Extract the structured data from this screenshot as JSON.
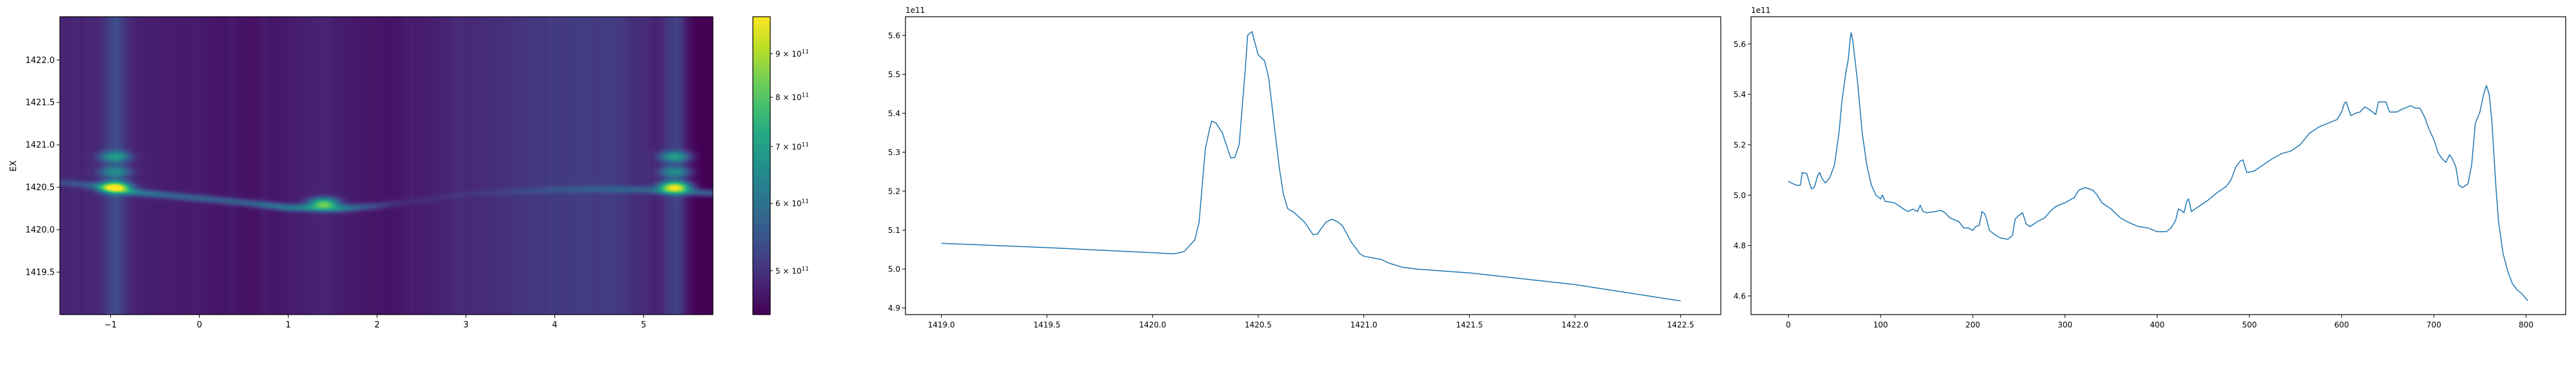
{
  "chart_data": [
    {
      "type": "heatmap",
      "ylabel": "EX",
      "xlabel": "",
      "xlim": [
        -1.57,
        5.78
      ],
      "ylim": [
        1419.0,
        1422.51
      ],
      "xticks": [
        "−1",
        "0",
        "1",
        "2",
        "3",
        "4",
        "5"
      ],
      "xtick_values": [
        -1,
        0,
        1,
        2,
        3,
        4,
        5
      ],
      "yticks": [
        "1419.5",
        "1420.0",
        "1420.5",
        "1421.0",
        "1421.5",
        "1422.0"
      ],
      "ytick_values": [
        1419.5,
        1420.0,
        1420.5,
        1421.0,
        1421.5,
        1422.0
      ],
      "colormap": "viridis",
      "color_scale": "log",
      "colorbar": {
        "vmin": 444000000000.0,
        "vmax": 995000000000.0,
        "ticks": [
          {
            "value": 500000000000.0,
            "base": "5 × 10",
            "exp": "11"
          },
          {
            "value": 600000000000.0,
            "base": "6 × 10",
            "exp": "11"
          },
          {
            "value": 700000000000.0,
            "base": "7 × 10",
            "exp": "11"
          },
          {
            "value": 800000000000.0,
            "base": "8 × 10",
            "exp": "11"
          },
          {
            "value": 900000000000.0,
            "base": "9 × 10",
            "exp": "11"
          }
        ]
      },
      "ridge": [
        [
          -1.57,
          1420.56,
          0.5
        ],
        [
          -1.2,
          1420.52,
          0.8
        ],
        [
          -0.8,
          1420.45,
          1.5
        ],
        [
          -0.3,
          1420.4,
          1.0
        ],
        [
          0.5,
          1420.32,
          1.0
        ],
        [
          1.0,
          1420.26,
          1.5
        ],
        [
          1.6,
          1420.25,
          1.5
        ],
        [
          2.0,
          1420.28,
          0.6
        ],
        [
          2.3,
          1420.32,
          0.2
        ],
        [
          3.0,
          1420.42,
          0.15
        ],
        [
          4.0,
          1420.47,
          0.4
        ],
        [
          4.5,
          1420.48,
          0.6
        ],
        [
          5.0,
          1420.47,
          0.8
        ],
        [
          5.78,
          1420.43,
          1.2
        ]
      ],
      "hotspots": [
        {
          "x": -0.95,
          "y": 1420.5,
          "value": 980000000000.0
        },
        {
          "x": -0.95,
          "y": 1420.86,
          "value": 700000000000.0
        },
        {
          "x": -0.95,
          "y": 1420.68,
          "value": 660000000000.0
        },
        {
          "x": 1.4,
          "y": 1420.31,
          "value": 800000000000.0
        },
        {
          "x": 5.35,
          "y": 1420.5,
          "value": 960000000000.0
        },
        {
          "x": 5.35,
          "y": 1420.86,
          "value": 700000000000.0
        },
        {
          "x": 5.35,
          "y": 1420.68,
          "value": 660000000000.0
        }
      ]
    },
    {
      "type": "line",
      "offset_label": "1e11",
      "color": "#1f77b4",
      "xlim": [
        1418.83,
        1422.69
      ],
      "ylim": [
        4.883,
        5.648
      ],
      "xticks": [
        "1419.0",
        "1419.5",
        "1420.0",
        "1420.5",
        "1421.0",
        "1421.5",
        "1422.0",
        "1422.5"
      ],
      "xtick_values": [
        1419.0,
        1419.5,
        1420.0,
        1420.5,
        1421.0,
        1421.5,
        1422.0,
        1422.5
      ],
      "yticks": [
        "4.9",
        "5.0",
        "5.1",
        "5.2",
        "5.3",
        "5.4",
        "5.5",
        "5.6"
      ],
      "ytick_values": [
        4.9,
        5.0,
        5.1,
        5.2,
        5.3,
        5.4,
        5.5,
        5.6
      ],
      "x": [
        1419.0,
        1419.5,
        1420.0,
        1420.1,
        1420.15,
        1420.2,
        1420.22,
        1420.25,
        1420.27,
        1420.28,
        1420.3,
        1420.33,
        1420.37,
        1420.39,
        1420.41,
        1420.44,
        1420.45,
        1420.47,
        1420.5,
        1420.53,
        1420.55,
        1420.58,
        1420.6,
        1420.62,
        1420.64,
        1420.67,
        1420.72,
        1420.76,
        1420.78,
        1420.82,
        1420.85,
        1420.88,
        1420.9,
        1420.94,
        1420.98,
        1421.0,
        1421.08,
        1421.12,
        1421.18,
        1421.25,
        1421.5,
        1422.0,
        1422.5
      ],
      "y": [
        5.066,
        5.055,
        5.042,
        5.039,
        5.045,
        5.075,
        5.12,
        5.31,
        5.36,
        5.38,
        5.375,
        5.35,
        5.285,
        5.287,
        5.32,
        5.52,
        5.6,
        5.61,
        5.55,
        5.535,
        5.49,
        5.35,
        5.26,
        5.19,
        5.155,
        5.145,
        5.12,
        5.088,
        5.09,
        5.12,
        5.128,
        5.12,
        5.11,
        5.07,
        5.04,
        5.033,
        5.025,
        5.015,
        5.005,
        5.0,
        4.99,
        4.96,
        4.918
      ]
    },
    {
      "type": "line",
      "offset_label": "1e11",
      "color": "#1f77b4",
      "xlim": [
        -40.5,
        843
      ],
      "ylim": [
        4.526,
        5.708
      ],
      "xticks": [
        "0",
        "100",
        "200",
        "300",
        "400",
        "500",
        "600",
        "700",
        "800"
      ],
      "xtick_values": [
        0,
        100,
        200,
        300,
        400,
        500,
        600,
        700,
        800
      ],
      "yticks": [
        "4.6",
        "4.8",
        "5.0",
        "5.2",
        "5.4",
        "5.6"
      ],
      "ytick_values": [
        4.6,
        4.8,
        5.0,
        5.2,
        5.4,
        5.6
      ],
      "x": [
        0,
        5,
        10,
        13,
        15,
        20,
        22,
        25,
        28,
        32,
        34,
        36,
        40,
        45,
        50,
        55,
        58,
        62,
        65,
        67,
        68,
        70,
        75,
        80,
        85,
        90,
        95,
        100,
        102,
        105,
        115,
        125,
        130,
        135,
        140,
        143,
        146,
        150,
        160,
        165,
        170,
        175,
        185,
        190,
        195,
        200,
        203,
        207,
        210,
        213,
        215,
        218,
        225,
        230,
        238,
        243,
        246,
        250,
        254,
        258,
        262,
        270,
        278,
        285,
        290,
        300,
        310,
        315,
        322,
        330,
        335,
        340,
        350,
        360,
        370,
        380,
        390,
        400,
        410,
        415,
        420,
        423,
        426,
        429,
        432,
        434,
        437,
        445,
        455,
        465,
        475,
        480,
        485,
        490,
        493,
        497,
        505,
        515,
        525,
        535,
        545,
        555,
        565,
        575,
        585,
        595,
        600,
        603,
        605,
        610,
        615,
        620,
        625,
        630,
        637,
        640,
        645,
        648,
        652,
        660,
        665,
        675,
        680,
        685,
        690,
        695,
        700,
        705,
        710,
        713,
        717,
        720,
        724,
        727,
        731,
        737,
        741,
        745,
        750,
        754,
        757,
        760,
        763,
        767,
        770,
        775,
        780,
        785,
        790,
        795,
        800,
        802
      ],
      "y": [
        5.055,
        5.045,
        5.038,
        5.04,
        5.09,
        5.085,
        5.06,
        5.025,
        5.03,
        5.08,
        5.09,
        5.07,
        5.048,
        5.07,
        5.12,
        5.25,
        5.37,
        5.48,
        5.54,
        5.62,
        5.645,
        5.61,
        5.45,
        5.25,
        5.12,
        5.04,
        5.0,
        4.985,
        5.0,
        4.975,
        4.97,
        4.945,
        4.935,
        4.945,
        4.935,
        4.96,
        4.935,
        4.93,
        4.935,
        4.94,
        4.93,
        4.91,
        4.895,
        4.87,
        4.87,
        4.86,
        4.875,
        4.88,
        4.935,
        4.925,
        4.905,
        4.86,
        4.84,
        4.83,
        4.825,
        4.84,
        4.905,
        4.92,
        4.93,
        4.885,
        4.875,
        4.895,
        4.91,
        4.94,
        4.955,
        4.97,
        4.99,
        5.02,
        5.03,
        5.02,
        5.0,
        4.97,
        4.945,
        4.91,
        4.89,
        4.875,
        4.87,
        4.855,
        4.855,
        4.87,
        4.9,
        4.945,
        4.94,
        4.93,
        4.975,
        4.985,
        4.935,
        4.955,
        4.98,
        5.01,
        5.035,
        5.06,
        5.11,
        5.135,
        5.14,
        5.09,
        5.095,
        5.12,
        5.145,
        5.165,
        5.175,
        5.2,
        5.245,
        5.27,
        5.285,
        5.3,
        5.33,
        5.365,
        5.37,
        5.315,
        5.325,
        5.33,
        5.35,
        5.34,
        5.32,
        5.37,
        5.37,
        5.37,
        5.33,
        5.33,
        5.34,
        5.355,
        5.345,
        5.345,
        5.31,
        5.26,
        5.22,
        5.165,
        5.14,
        5.13,
        5.16,
        5.145,
        5.11,
        5.04,
        5.03,
        5.045,
        5.12,
        5.285,
        5.33,
        5.4,
        5.435,
        5.4,
        5.29,
        5.05,
        4.9,
        4.77,
        4.7,
        4.65,
        4.625,
        4.61,
        4.59,
        4.58
      ]
    }
  ]
}
